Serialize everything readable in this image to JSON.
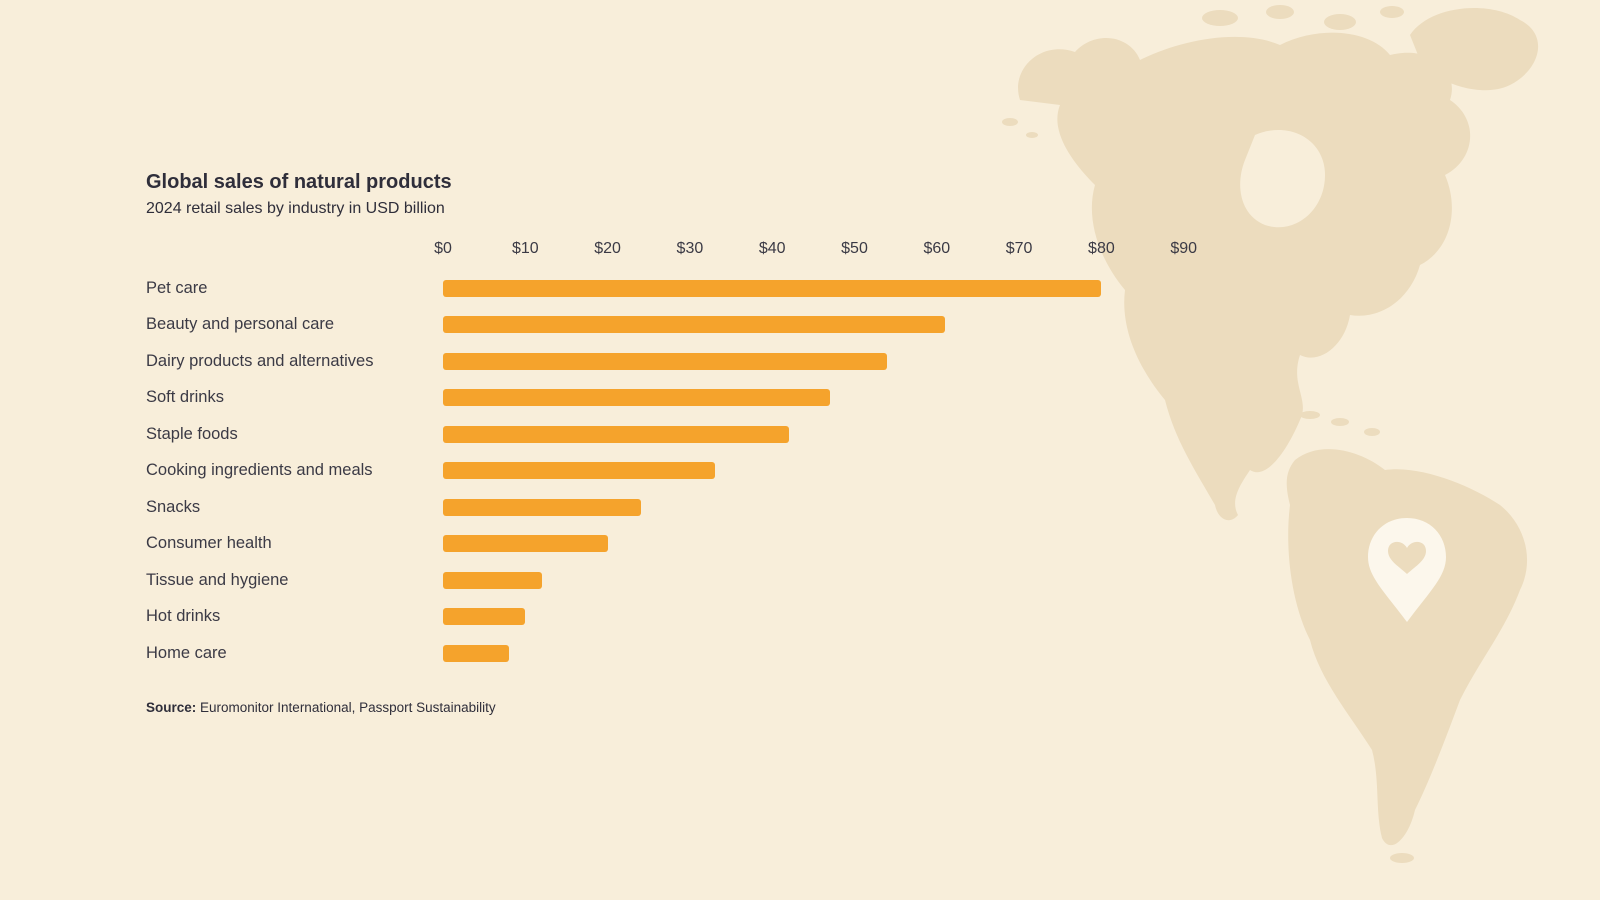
{
  "page": {
    "title": "Global sales of natural products",
    "subtitle": "2024 retail sales by industry in USD billion",
    "source_label": "Source:",
    "source_text": " Euromonitor International, Passport Sustainability"
  },
  "colors": {
    "background": "#f8eeda",
    "map_fill": "#ecdcbe",
    "pin_fill": "#fcf7ec",
    "bar_color": "#F5A32C",
    "text_dark": "#2f2e3a"
  },
  "chart_data": {
    "type": "bar",
    "orientation": "horizontal",
    "title": "Global sales of natural products",
    "subtitle": "2024 retail sales by industry in USD billion",
    "xlabel": "",
    "ylabel": "",
    "units": "USD billion",
    "axis_ticks": [
      "$0",
      "$10",
      "$20",
      "$30",
      "$40",
      "$50",
      "$60",
      "$70",
      "$80",
      "$90"
    ],
    "axis_range": [
      0,
      90
    ],
    "grid": false,
    "legend": false,
    "bar_color": "#F5A32C",
    "categories": [
      "Pet care",
      "Beauty and personal care",
      "Dairy products and alternatives",
      "Soft drinks",
      "Staple foods",
      "Cooking ingredients and meals",
      "Snacks",
      "Consumer health",
      "Tissue and hygiene",
      "Hot drinks",
      "Home care"
    ],
    "values": [
      80,
      61,
      54,
      47,
      42,
      33,
      24,
      20,
      12,
      10,
      8
    ],
    "source": "Source: Euromonitor International, Passport Sustainability"
  }
}
